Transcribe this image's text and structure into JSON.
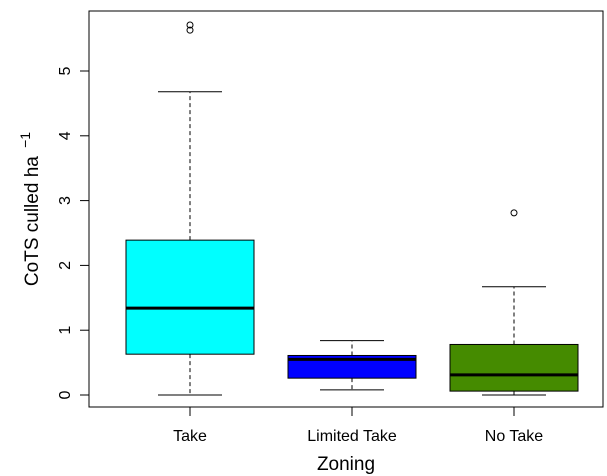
{
  "chart_data": {
    "type": "boxplot",
    "xlabel": "Zoning",
    "ylabel": "CoTS culled ha",
    "ylabel_superscript": "−1",
    "ylim": [
      -0.2,
      5.9
    ],
    "yticks": [
      0,
      1,
      2,
      3,
      4,
      5
    ],
    "grid": false,
    "legend": "none",
    "categories": [
      "Take",
      "Limited Take",
      "No Take"
    ],
    "boxes": [
      {
        "name": "Take",
        "color": "#00FFFF",
        "whisker_low": 0.0,
        "q1": 0.63,
        "median": 1.34,
        "q3": 2.39,
        "whisker_high": 4.68,
        "outliers": [
          5.63,
          5.71
        ]
      },
      {
        "name": "Limited Take",
        "color": "#0000FF",
        "whisker_low": 0.08,
        "q1": 0.26,
        "median": 0.55,
        "q3": 0.61,
        "whisker_high": 0.84,
        "outliers": []
      },
      {
        "name": "No Take",
        "color": "#458B00",
        "whisker_low": 0.0,
        "q1": 0.06,
        "median": 0.31,
        "q3": 0.78,
        "whisker_high": 1.67,
        "outliers": [
          2.81
        ]
      }
    ]
  }
}
